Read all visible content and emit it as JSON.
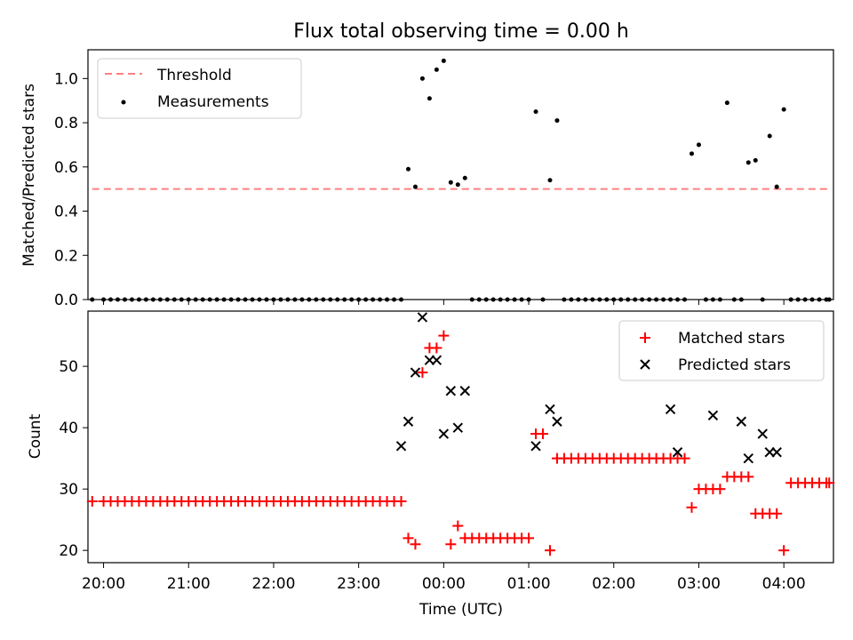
{
  "title": "Flux total observing time = 0.00 h",
  "xlabel": "Time (UTC)",
  "colors": {
    "threshold": "#ff8080",
    "measurement": "#000000",
    "matched": "#ff0000",
    "predicted": "#000000"
  },
  "chart_data": [
    {
      "type": "scatter",
      "title": "Flux total observing time = 0.00 h",
      "ylabel": "Matched/Predicted stars",
      "xlabel": "",
      "xlim": [
        "19:49",
        "04:35"
      ],
      "ylim": [
        0.0,
        1.13
      ],
      "yticks": [
        0.0,
        0.2,
        0.4,
        0.6,
        0.8,
        1.0
      ],
      "ytick_labels": [
        "0.0",
        "0.2",
        "0.4",
        "0.6",
        "0.8",
        "1.0"
      ],
      "legend_position": "top-left",
      "legend": [
        "Threshold",
        "Measurements"
      ],
      "threshold": {
        "name": "Threshold",
        "value": 0.5,
        "x": [
          "19:52",
          "04:32"
        ]
      },
      "measurements": {
        "name": "Measurements",
        "x": [
          "19:52",
          "20:00",
          "20:05",
          "20:10",
          "20:15",
          "20:20",
          "20:25",
          "20:30",
          "20:35",
          "20:40",
          "20:45",
          "20:50",
          "20:55",
          "21:00",
          "21:05",
          "21:10",
          "21:15",
          "21:20",
          "21:25",
          "21:30",
          "21:35",
          "21:40",
          "21:45",
          "21:50",
          "21:55",
          "22:00",
          "22:05",
          "22:10",
          "22:15",
          "22:20",
          "22:25",
          "22:30",
          "22:35",
          "22:40",
          "22:45",
          "22:50",
          "22:55",
          "23:00",
          "23:05",
          "23:10",
          "23:15",
          "23:20",
          "23:25",
          "23:30",
          "23:35",
          "23:40",
          "23:45",
          "23:50",
          "23:55",
          "00:00",
          "00:05",
          "00:10",
          "00:15",
          "00:20",
          "00:25",
          "00:30",
          "00:35",
          "00:40",
          "00:45",
          "00:50",
          "00:55",
          "01:00",
          "01:05",
          "01:10",
          "01:15",
          "01:20",
          "01:25",
          "01:30",
          "01:35",
          "01:40",
          "01:45",
          "01:50",
          "01:55",
          "02:00",
          "02:05",
          "02:10",
          "02:15",
          "02:20",
          "02:25",
          "02:30",
          "02:35",
          "02:40",
          "02:45",
          "02:50",
          "02:55",
          "03:00",
          "03:05",
          "03:10",
          "03:15",
          "03:20",
          "03:25",
          "03:30",
          "03:35",
          "03:40",
          "03:45",
          "03:50",
          "03:55",
          "04:00",
          "04:05",
          "04:10",
          "04:15",
          "04:20",
          "04:25",
          "04:30",
          "04:32"
        ],
        "y": [
          0,
          0,
          0,
          0,
          0,
          0,
          0,
          0,
          0,
          0,
          0,
          0,
          0,
          0,
          0,
          0,
          0,
          0,
          0,
          0,
          0,
          0,
          0,
          0,
          0,
          0,
          0,
          0,
          0,
          0,
          0,
          0,
          0,
          0,
          0,
          0,
          0,
          0,
          0,
          0,
          0,
          0,
          0,
          0,
          0.59,
          0.51,
          1.0,
          0.91,
          1.04,
          1.08,
          0.53,
          0.52,
          0.55,
          0,
          0,
          0,
          0,
          0,
          0,
          0,
          0,
          0,
          0.85,
          0,
          0.54,
          0.81,
          0,
          0,
          0,
          0,
          0,
          0,
          0,
          0,
          0,
          0,
          0,
          0,
          0,
          0,
          0,
          0,
          0,
          0,
          0.66,
          0.7,
          0,
          0,
          0,
          0.89,
          0,
          0,
          0.62,
          0.63,
          0,
          0.74,
          0.51,
          0.86,
          0,
          0,
          0,
          0,
          0,
          0,
          0
        ]
      }
    },
    {
      "type": "scatter",
      "title": "",
      "xlabel": "Time (UTC)",
      "ylabel": "Count",
      "xlim": [
        "19:49",
        "04:35"
      ],
      "ylim": [
        18.0,
        59.0
      ],
      "xticks": [
        "20:00",
        "21:00",
        "22:00",
        "23:00",
        "00:00",
        "01:00",
        "02:00",
        "03:00",
        "04:00"
      ],
      "xtick_labels": [
        "20:00",
        "21:00",
        "22:00",
        "23:00",
        "00:00",
        "01:00",
        "02:00",
        "03:00",
        "04:00"
      ],
      "yticks": [
        20,
        30,
        40,
        50
      ],
      "ytick_labels": [
        "20",
        "30",
        "40",
        "50"
      ],
      "legend_position": "top-right",
      "legend": [
        "Matched stars",
        "Predicted stars"
      ],
      "series": [
        {
          "name": "Matched stars",
          "marker": "+",
          "x": [
            "19:52",
            "20:00",
            "20:05",
            "20:10",
            "20:15",
            "20:20",
            "20:25",
            "20:30",
            "20:35",
            "20:40",
            "20:45",
            "20:50",
            "20:55",
            "21:00",
            "21:05",
            "21:10",
            "21:15",
            "21:20",
            "21:25",
            "21:30",
            "21:35",
            "21:40",
            "21:45",
            "21:50",
            "21:55",
            "22:00",
            "22:05",
            "22:10",
            "22:15",
            "22:20",
            "22:25",
            "22:30",
            "22:35",
            "22:40",
            "22:45",
            "22:50",
            "22:55",
            "23:00",
            "23:05",
            "23:10",
            "23:15",
            "23:20",
            "23:25",
            "23:30",
            "23:35",
            "23:40",
            "23:45",
            "23:50",
            "23:55",
            "00:00",
            "00:05",
            "00:10",
            "00:15",
            "00:20",
            "00:25",
            "00:30",
            "00:35",
            "00:40",
            "00:45",
            "00:50",
            "00:55",
            "01:00",
            "01:05",
            "01:10",
            "01:15",
            "01:20",
            "01:25",
            "01:30",
            "01:35",
            "01:40",
            "01:45",
            "01:50",
            "01:55",
            "02:00",
            "02:05",
            "02:10",
            "02:15",
            "02:20",
            "02:25",
            "02:30",
            "02:35",
            "02:40",
            "02:45",
            "02:50",
            "02:55",
            "03:00",
            "03:05",
            "03:10",
            "03:15",
            "03:20",
            "03:25",
            "03:30",
            "03:35",
            "03:40",
            "03:45",
            "03:50",
            "03:55",
            "04:00",
            "04:05",
            "04:10",
            "04:15",
            "04:20",
            "04:25",
            "04:30",
            "04:32"
          ],
          "y": [
            28,
            28,
            28,
            28,
            28,
            28,
            28,
            28,
            28,
            28,
            28,
            28,
            28,
            28,
            28,
            28,
            28,
            28,
            28,
            28,
            28,
            28,
            28,
            28,
            28,
            28,
            28,
            28,
            28,
            28,
            28,
            28,
            28,
            28,
            28,
            28,
            28,
            28,
            28,
            28,
            28,
            28,
            28,
            28,
            22,
            21,
            49,
            53,
            53,
            55,
            21,
            24,
            22,
            22,
            22,
            22,
            22,
            22,
            22,
            22,
            22,
            22,
            39,
            39,
            20,
            35,
            35,
            35,
            35,
            35,
            35,
            35,
            35,
            35,
            35,
            35,
            35,
            35,
            35,
            35,
            35,
            35,
            35,
            35,
            27,
            30,
            30,
            30,
            30,
            32,
            32,
            32,
            32,
            26,
            26,
            26,
            26,
            20,
            31,
            31,
            31,
            31,
            31,
            31,
            31
          ]
        },
        {
          "name": "Predicted stars",
          "marker": "x",
          "x": [
            "23:30",
            "23:35",
            "23:40",
            "23:45",
            "23:50",
            "23:55",
            "00:00",
            "00:05",
            "00:10",
            "00:15",
            "01:05",
            "01:15",
            "01:20",
            "02:40",
            "02:45",
            "03:10",
            "03:30",
            "03:35",
            "03:45",
            "03:50",
            "03:55"
          ],
          "y": [
            37,
            41,
            49,
            58,
            51,
            51,
            39,
            46,
            40,
            46,
            37,
            43,
            41,
            43,
            36,
            42,
            41,
            35,
            39,
            36,
            36
          ]
        }
      ]
    }
  ]
}
